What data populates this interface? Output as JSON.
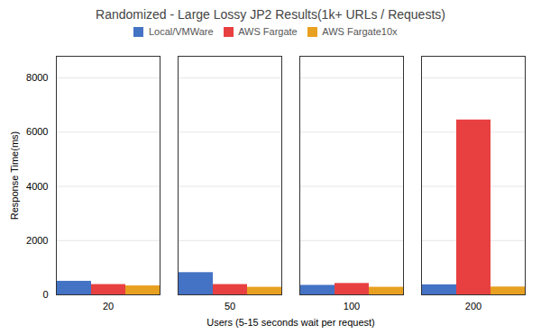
{
  "chart_data": {
    "type": "bar",
    "title": "Randomized - Large Lossy JP2 Results(1k+ URLs / Requests)",
    "xlabel": "Users (5-15 seconds wait per request)",
    "ylabel": "Response Time(ms)",
    "categories": [
      20,
      50,
      100,
      200
    ],
    "series": [
      {
        "name": "Local/VMWare",
        "color": "#4472C4",
        "values": [
          500,
          820,
          350,
          370
        ]
      },
      {
        "name": "AWS Fargate",
        "color": "#E84040",
        "values": [
          380,
          380,
          420,
          6450
        ]
      },
      {
        "name": "AWS Fargate10x",
        "color": "#E8A020",
        "values": [
          330,
          280,
          280,
          290
        ]
      }
    ],
    "ylim": [
      0,
      8800
    ],
    "yticks": [
      0,
      2000,
      4000,
      6000,
      8000
    ],
    "grid": true,
    "legend": "top"
  }
}
